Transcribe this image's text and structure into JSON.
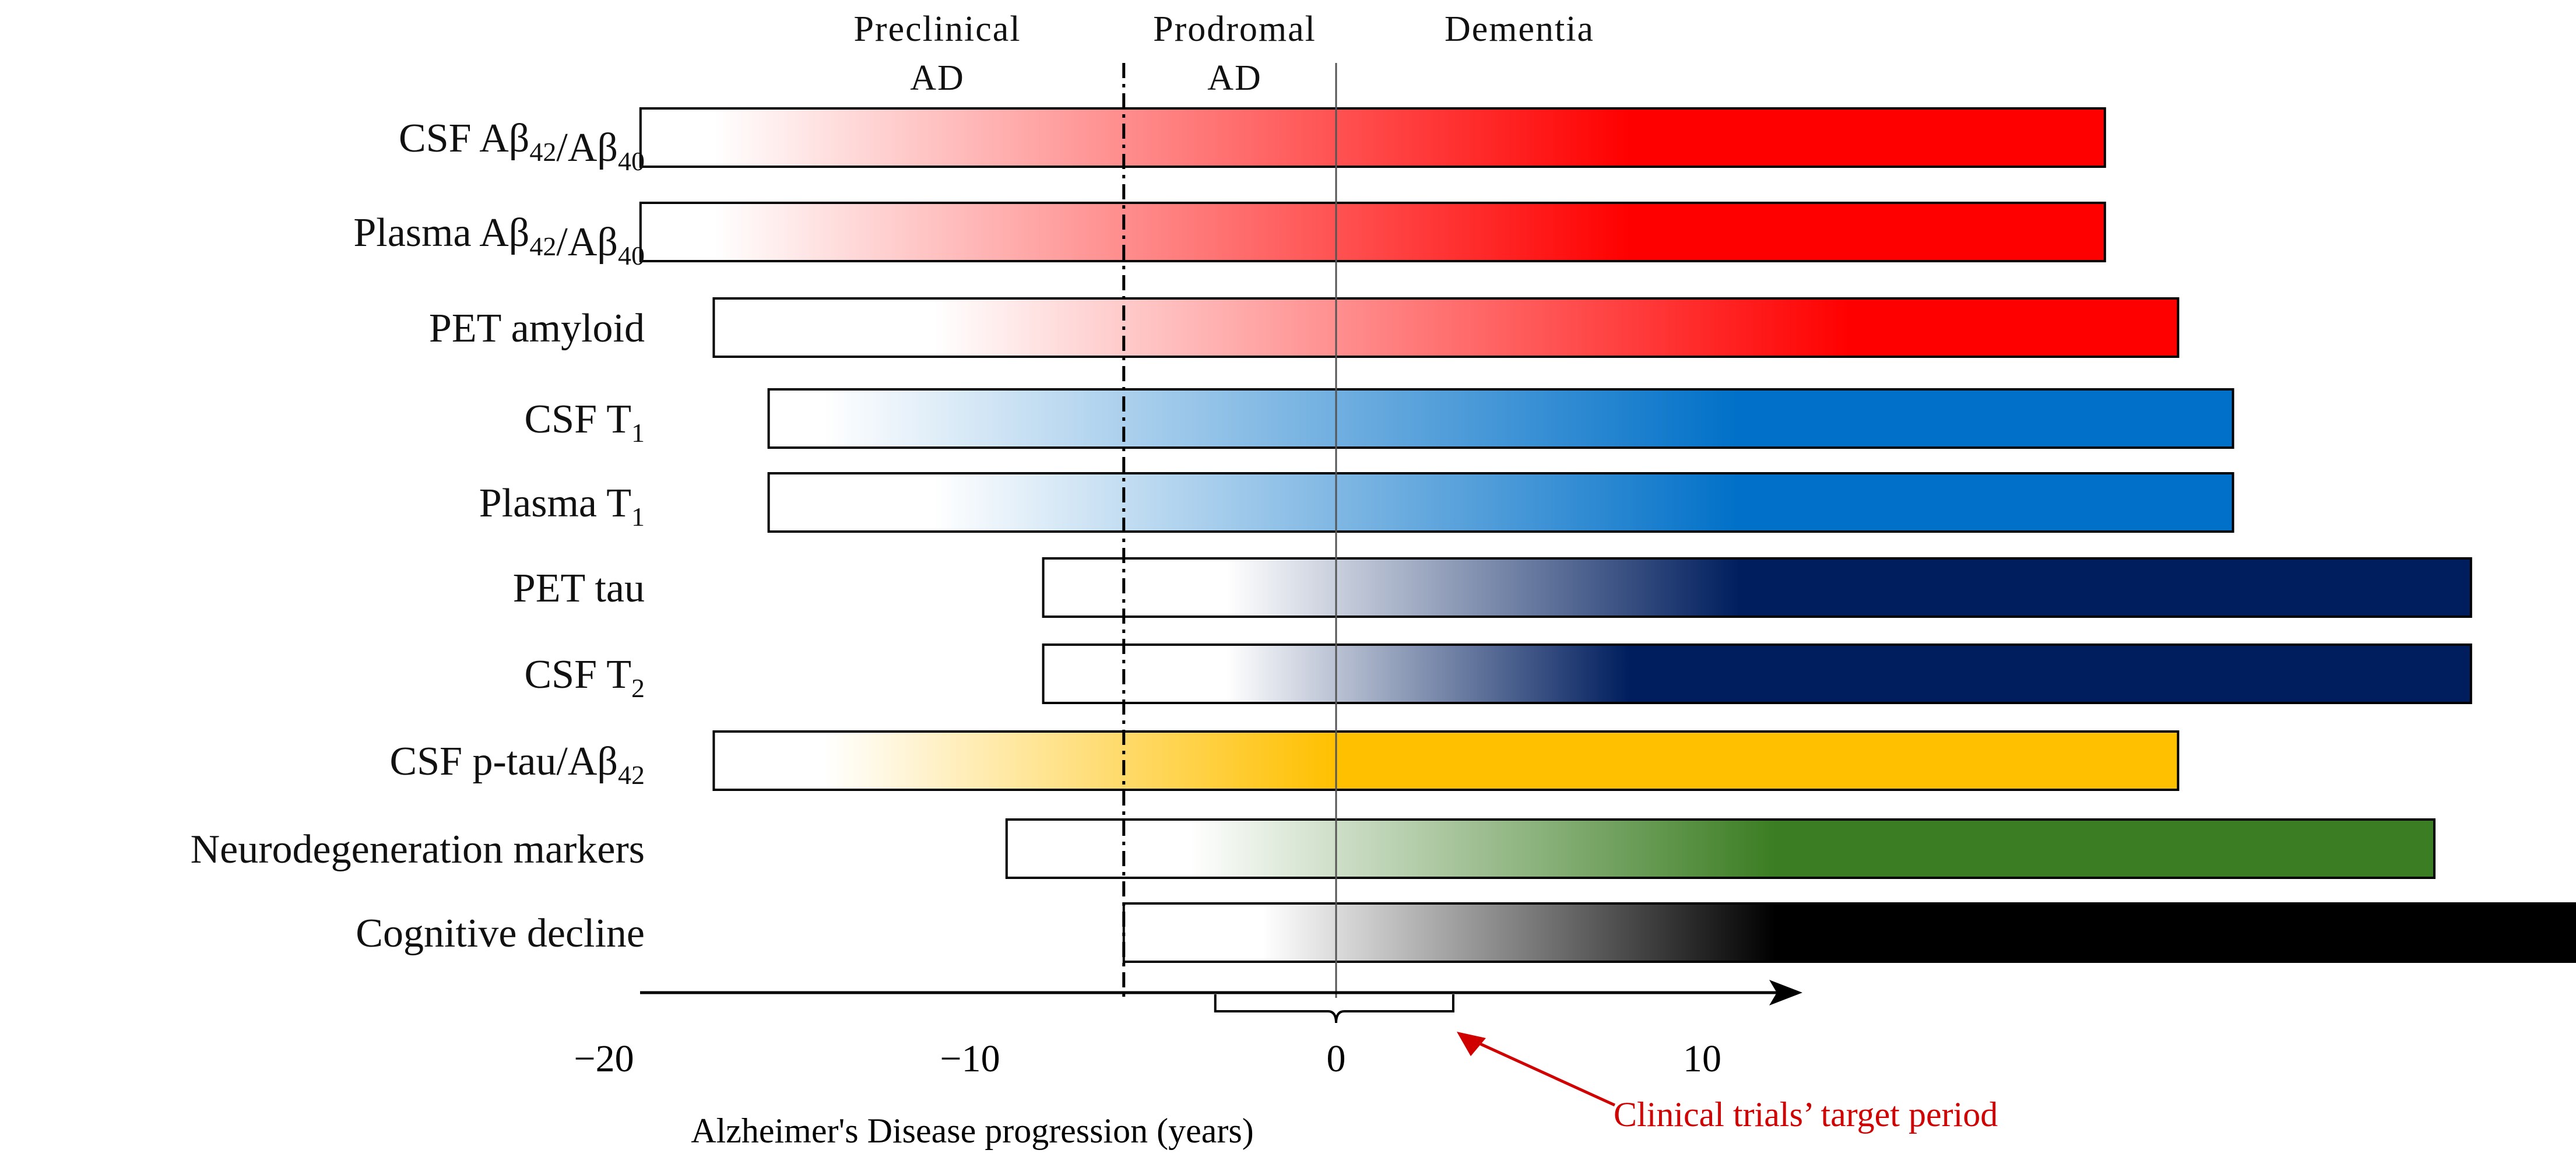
{
  "chart_data": {
    "type": "bar",
    "subtype": "gradient-range-timeline",
    "xlabel": "Alzheimer's Disease progression (years)",
    "xlim": [
      -20,
      13
    ],
    "xticks": [
      {
        "value": -20,
        "label": "−20"
      },
      {
        "value": -10,
        "label": "−10"
      },
      {
        "value": 0,
        "label": "0"
      },
      {
        "value": 10,
        "label": "10"
      }
    ],
    "phases": [
      {
        "label_lines": [
          "Preclinical",
          "AD"
        ]
      },
      {
        "label_lines": [
          "Prodromal",
          "AD"
        ]
      },
      {
        "label_lines": [
          "Dementia"
        ]
      }
    ],
    "phase_boundaries": [
      {
        "value": -5.8,
        "style": "dash-dot"
      },
      {
        "value": 0,
        "style": "solid"
      }
    ],
    "series": [
      {
        "name": "CSF Aβ42/Aβ40",
        "label_parts": [
          [
            "CSF Aβ",
            ""
          ],
          [
            "42",
            "sub"
          ],
          [
            "/Aβ",
            ""
          ],
          [
            "40",
            "sub"
          ]
        ],
        "start": -19,
        "end": 21,
        "fade_start": -17,
        "full_at": 8,
        "color": "#FF0000"
      },
      {
        "name": "Plasma Aβ42/Aβ40",
        "label_parts": [
          [
            "Plasma Aβ",
            ""
          ],
          [
            "42",
            "sub"
          ],
          [
            "/Aβ",
            ""
          ],
          [
            "40",
            "sub"
          ]
        ],
        "start": -19,
        "end": 21,
        "fade_start": -17,
        "full_at": 8,
        "color": "#FF0000"
      },
      {
        "name": "PET amyloid",
        "label_parts": [
          [
            "PET amyloid",
            ""
          ]
        ],
        "start": -17,
        "end": 23,
        "fade_start": -11,
        "full_at": 14,
        "color": "#FF0000"
      },
      {
        "name": "CSF T1",
        "label_parts": [
          [
            "CSF T",
            ""
          ],
          [
            "1",
            "sub"
          ]
        ],
        "start": -15.5,
        "end": 24.5,
        "fade_start": -14,
        "full_at": 11,
        "color": "#0070C8"
      },
      {
        "name": "Plasma T1",
        "label_parts": [
          [
            "Plasma T",
            ""
          ],
          [
            "1",
            "sub"
          ]
        ],
        "start": -15.5,
        "end": 24.5,
        "fade_start": -11,
        "full_at": 11,
        "color": "#0070C8"
      },
      {
        "name": "PET tau",
        "label_parts": [
          [
            "PET tau",
            ""
          ]
        ],
        "start": -8,
        "end": 31,
        "fade_start": -3,
        "full_at": 11,
        "color": "#001E5E"
      },
      {
        "name": "CSF T2",
        "label_parts": [
          [
            "CSF T",
            ""
          ],
          [
            "2",
            "sub"
          ]
        ],
        "start": -8,
        "end": 31,
        "fade_start": -3,
        "full_at": 8,
        "color": "#001E5E"
      },
      {
        "name": "CSF p-tau/Aβ42",
        "label_parts": [
          [
            "CSF p-tau/Aβ",
            ""
          ],
          [
            "42",
            "sub"
          ]
        ],
        "start": -17,
        "end": 23,
        "fade_start": -14,
        "full_at": 0,
        "color": "#FFC000"
      },
      {
        "name": "Neurodegeneration markers",
        "label_parts": [
          [
            "Neurodegeneration markers",
            ""
          ]
        ],
        "start": -9,
        "end": 30,
        "fade_start": -4,
        "full_at": 12,
        "color": "#3B7D22"
      },
      {
        "name": "Cognitive decline",
        "label_parts": [
          [
            "Cognitive decline",
            ""
          ]
        ],
        "start": -5.8,
        "end": 34,
        "fade_start": -2,
        "full_at": 12,
        "color": "#000000"
      }
    ],
    "annotation": {
      "text": "Clinical trials’ target period",
      "range": [
        -3.3,
        3.2
      ],
      "color": "#D00000"
    }
  }
}
